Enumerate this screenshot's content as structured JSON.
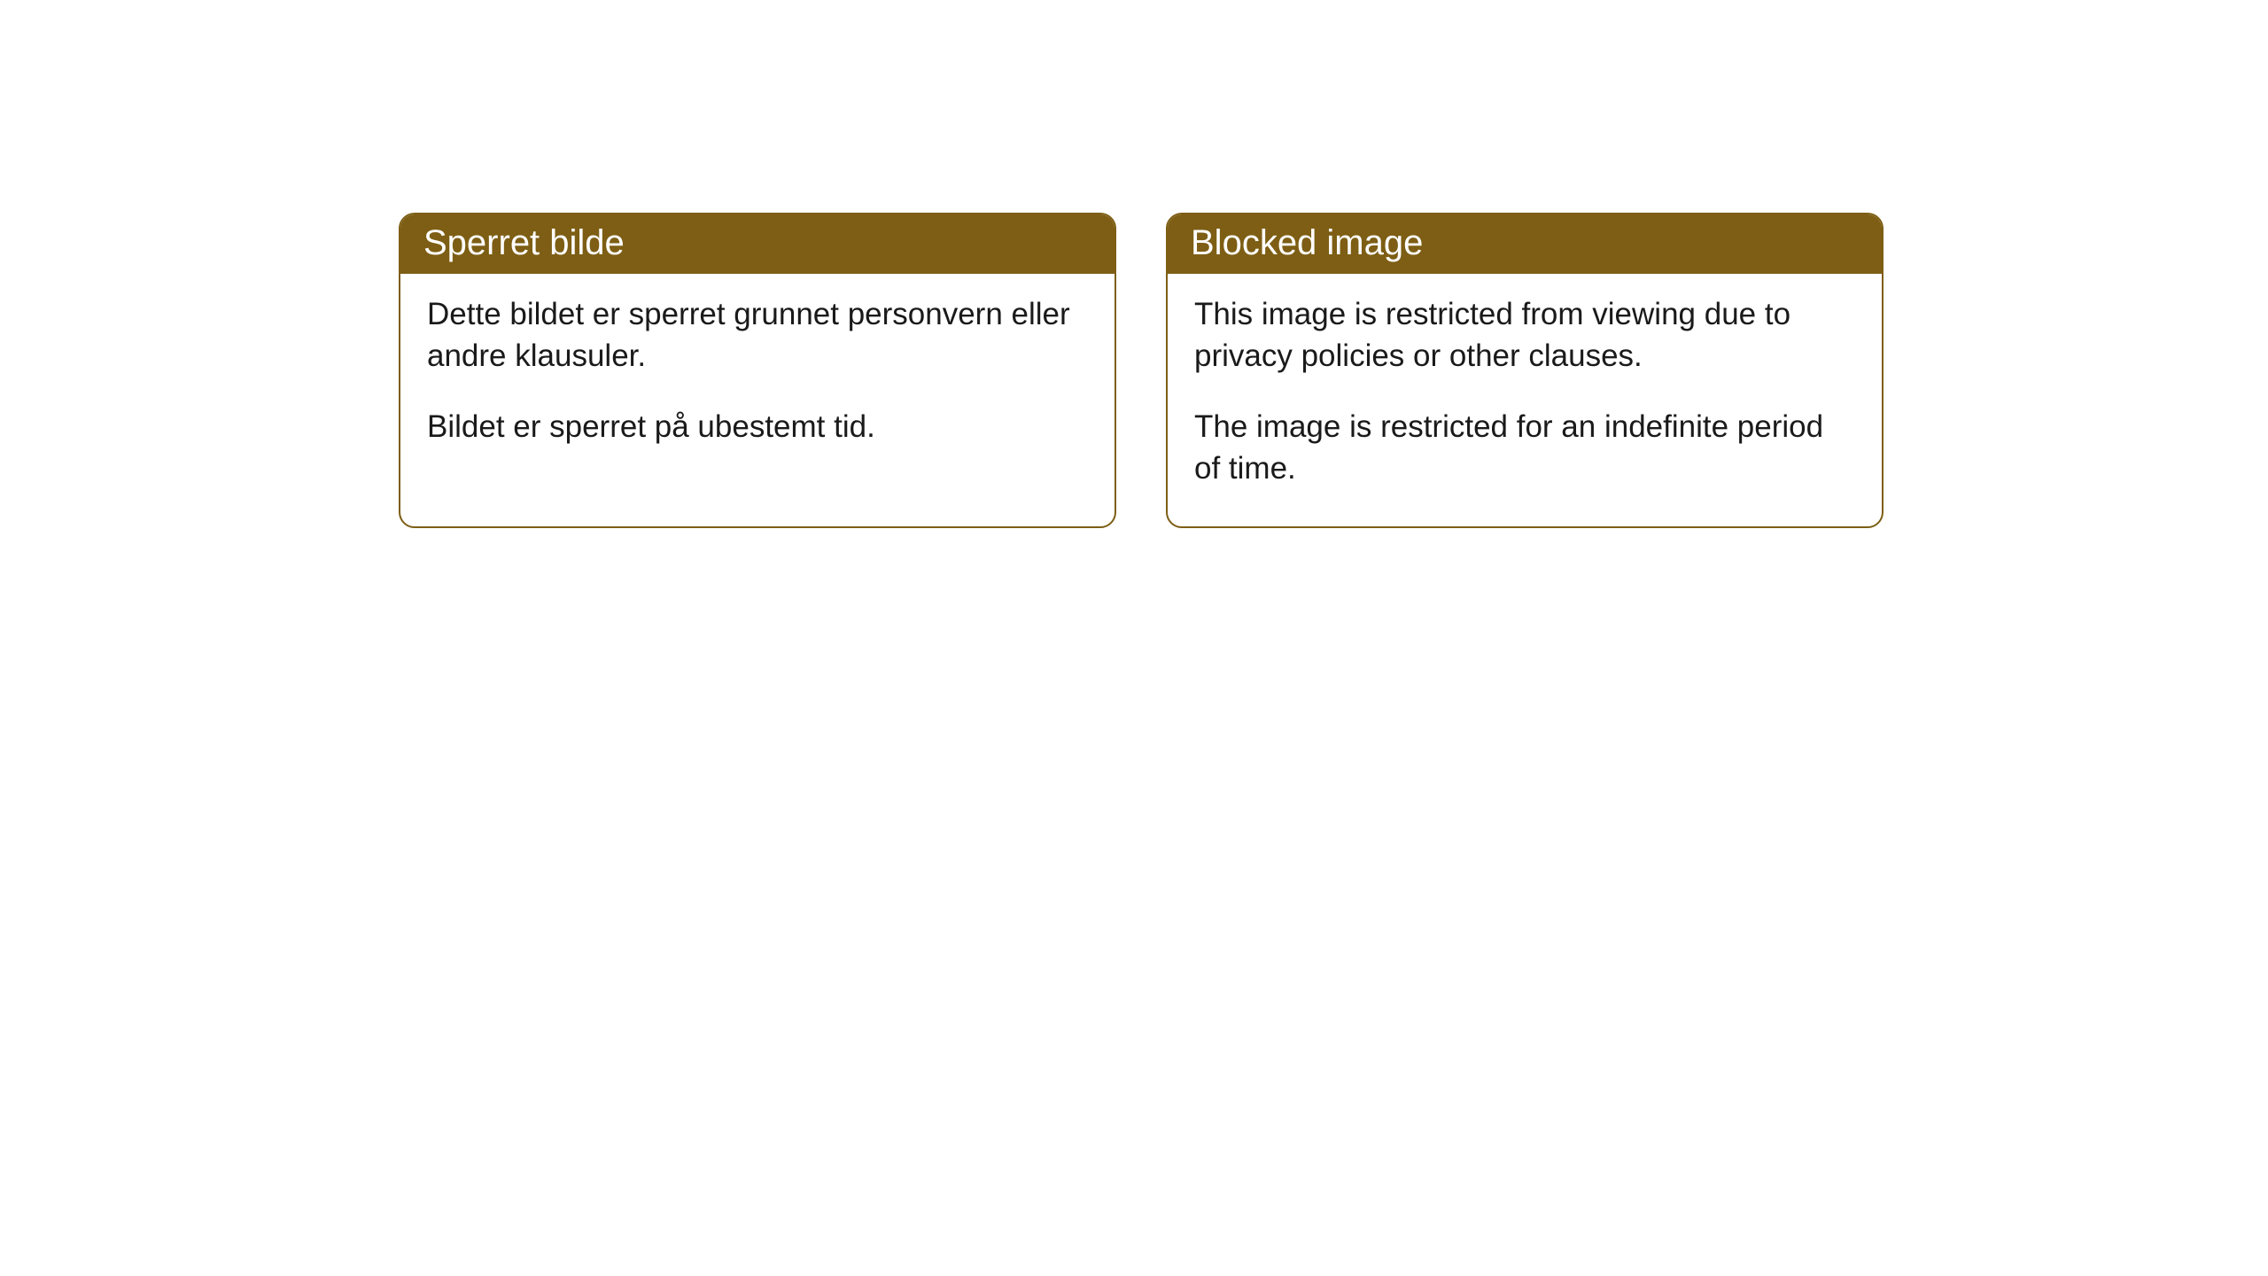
{
  "cards": [
    {
      "title": "Sperret bilde",
      "paragraph1": "Dette bildet er sperret grunnet personvern eller andre klausuler.",
      "paragraph2": "Bildet er sperret på ubestemt tid."
    },
    {
      "title": "Blocked image",
      "paragraph1": "This image is restricted from viewing due to privacy policies or other clauses.",
      "paragraph2": "The image is restricted for an indefinite period of time."
    }
  ],
  "styling": {
    "header_bg_color": "#7d5e14",
    "header_text_color": "#ffffff",
    "border_color": "#7d5e14",
    "body_bg_color": "#ffffff",
    "body_text_color": "#1a1a1a",
    "border_radius": 18,
    "header_fontsize": 40,
    "body_fontsize": 35
  }
}
